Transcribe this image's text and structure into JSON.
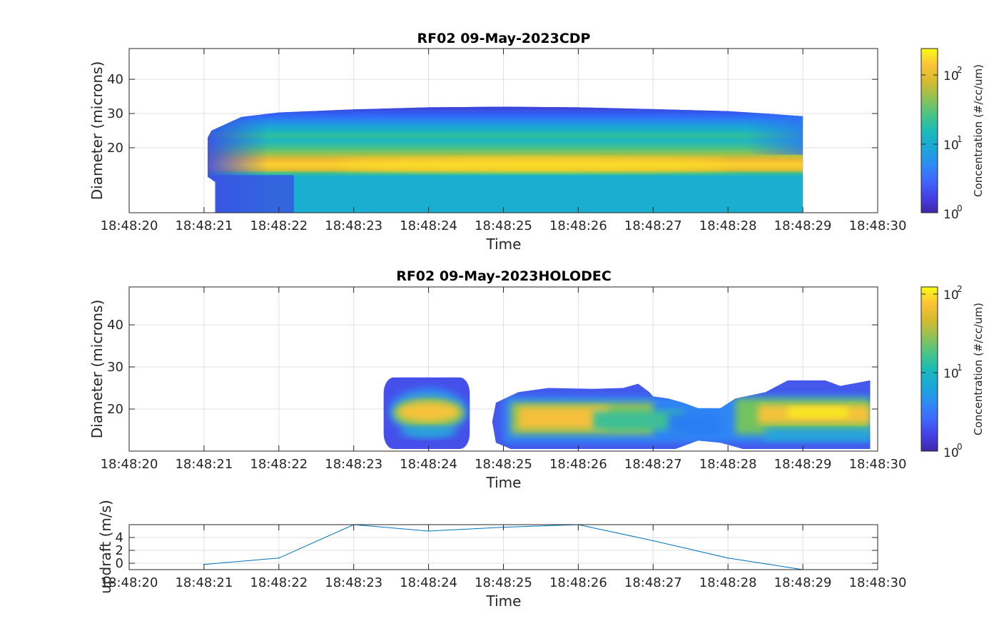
{
  "chart_data": [
    {
      "type": "heatmap",
      "title": "RF02 09-May-2023CDP",
      "xlabel": "Time",
      "ylabel": "Diameter (microns)",
      "x_ticks": [
        "18:48:20",
        "18:48:21",
        "18:48:22",
        "18:48:23",
        "18:48:24",
        "18:48:25",
        "18:48:26",
        "18:48:27",
        "18:48:28",
        "18:48:29",
        "18:48:30"
      ],
      "xlim_seconds": [
        20,
        30
      ],
      "y_ticks": [
        20,
        30,
        40
      ],
      "ylim": [
        1,
        49
      ],
      "grid": true,
      "colorbar": {
        "label": "Concentration (#/cc/um)",
        "scale": "log",
        "range": [
          1,
          250
        ],
        "ticks": [
          "10^0",
          "10^1",
          "10^2"
        ]
      },
      "colormap": [
        "#3e26a8",
        "#4743f8",
        "#2c79fc",
        "#1898db",
        "#12b5c2",
        "#3dc089",
        "#92bf3a",
        "#d6b826",
        "#fcc438",
        "#f9fb15"
      ],
      "x_range_seconds": [
        21,
        29
      ],
      "upper_boundary": [
        [
          21.05,
          23
        ],
        [
          21.1,
          25
        ],
        [
          21.3,
          27
        ],
        [
          21.5,
          29
        ],
        [
          22,
          30.3
        ],
        [
          23,
          31.2
        ],
        [
          24,
          31.8
        ],
        [
          25,
          32
        ],
        [
          26,
          31.8
        ],
        [
          27,
          31.3
        ],
        [
          28,
          30.7
        ],
        [
          28.5,
          30
        ],
        [
          29,
          29.2
        ]
      ],
      "lower_boundary": [
        [
          21,
          10
        ],
        [
          21.3,
          11
        ],
        [
          29,
          11
        ]
      ],
      "bands": [
        {
          "diameter_range": [
            27,
            32
          ],
          "level": "2"
        },
        {
          "diameter_range": [
            20,
            27
          ],
          "level": "10"
        },
        {
          "diameter_range": [
            13,
            20
          ],
          "level": "100"
        },
        {
          "diameter_range": [
            11,
            13
          ],
          "level": "10"
        }
      ],
      "peak_region": {
        "time_range": [
          22.8,
          28
        ],
        "diameter_range": [
          13,
          17
        ],
        "level": "200"
      }
    },
    {
      "type": "heatmap",
      "title": "RF02 09-May-2023HOLODEC",
      "xlabel": "Time",
      "ylabel": "Diameter (microns)",
      "x_ticks": [
        "18:48:20",
        "18:48:21",
        "18:48:22",
        "18:48:23",
        "18:48:24",
        "18:48:25",
        "18:48:26",
        "18:48:27",
        "18:48:28",
        "18:48:29",
        "18:48:30"
      ],
      "xlim_seconds": [
        20,
        30
      ],
      "y_ticks": [
        20,
        30,
        40
      ],
      "ylim": [
        10,
        49
      ],
      "grid": true,
      "colorbar": {
        "label": "Concentration (#/cc/um)",
        "scale": "log",
        "range": [
          1,
          140
        ],
        "ticks": [
          "10^0",
          "10^1",
          "10^2"
        ]
      },
      "colormap": [
        "#3e26a8",
        "#4743f8",
        "#2c79fc",
        "#1898db",
        "#12b5c2",
        "#3dc089",
        "#92bf3a",
        "#d6b826",
        "#fcc438",
        "#f9fb15"
      ],
      "regions": [
        {
          "time_range": [
            23.4,
            24.55
          ],
          "diameter_range": [
            10.5,
            27.5
          ],
          "core_time": [
            23.6,
            24.35
          ],
          "core_diameter": [
            16,
            22
          ],
          "peak_diameter": [
            18,
            21
          ]
        },
        {
          "time_range": [
            24.85,
            29.9
          ],
          "diameter_range": [
            10.5,
            26
          ],
          "core_time": [
            25.1,
            27.0
          ],
          "core_diameter": [
            15,
            21
          ],
          "peak_diameter": [
            16,
            20
          ]
        },
        {
          "time_range": [
            27.9,
            29.9
          ],
          "diameter_range": [
            10.5,
            27
          ],
          "core_time": [
            28.3,
            29.9
          ],
          "core_diameter": [
            16,
            22
          ],
          "peak_diameter": [
            18,
            21
          ]
        }
      ]
    },
    {
      "type": "line",
      "title": "",
      "xlabel": "Time",
      "ylabel": "updraft (m/s)",
      "x_ticks": [
        "18:48:20",
        "18:48:21",
        "18:48:22",
        "18:48:23",
        "18:48:24",
        "18:48:25",
        "18:48:26",
        "18:48:27",
        "18:48:28",
        "18:48:29",
        "18:48:30"
      ],
      "xlim_seconds": [
        20,
        30
      ],
      "y_ticks": [
        0,
        2,
        4
      ],
      "ylim": [
        -1,
        6
      ],
      "grid": true,
      "line_color": "#0072bd",
      "x_seconds": [
        21,
        22,
        23,
        24,
        25,
        26,
        27,
        28,
        29
      ],
      "values": [
        -0.2,
        0.8,
        6.0,
        5.0,
        5.6,
        6.0,
        3.5,
        0.8,
        -1.0
      ]
    }
  ]
}
